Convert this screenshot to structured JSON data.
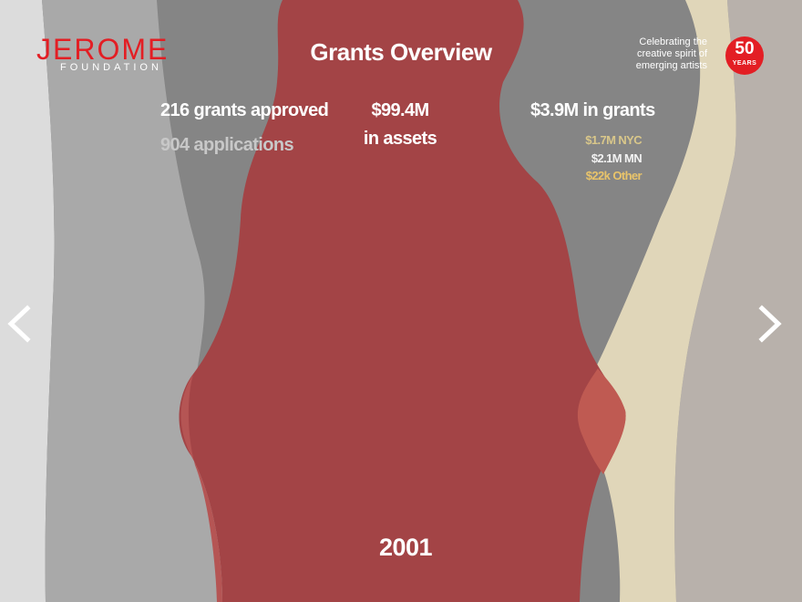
{
  "logo": {
    "name": "JEROME",
    "sub": "FOUNDATION"
  },
  "header": {
    "title": "Grants Overview",
    "tagline_lines": [
      "Celebrating the",
      "creative spirit of",
      "emerging artists"
    ],
    "badge_number": "50",
    "badge_word": "YEARS"
  },
  "stats": {
    "grants_approved": "216 grants approved",
    "applications": "904 applications",
    "assets_value": "$99.4M",
    "assets_label": "in assets",
    "grants_total": "$3.9M in grants",
    "nyc": "$1.7M NYC",
    "mn": "$2.1M MN",
    "other": "$22k Other"
  },
  "year": "2001",
  "nav": {
    "prev_icon": "chevron-left-icon",
    "next_icon": "chevron-right-icon"
  },
  "colors": {
    "brand_red": "#e31e24",
    "assets_red": "#a34446",
    "nyc_gold": "#d9c78a",
    "other_gold": "#e9c46a",
    "cream_stream": "#e0d6b9"
  }
}
